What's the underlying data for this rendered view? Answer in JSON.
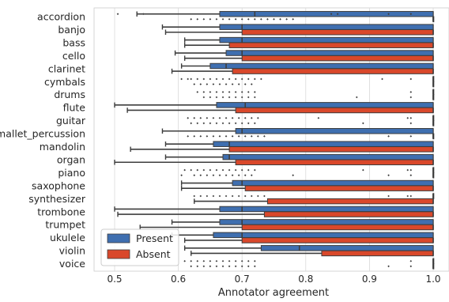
{
  "chart_data": {
    "type": "boxplot",
    "orientation": "horizontal",
    "xlabel": "Annotator agreement",
    "ylabel": "",
    "xlim": [
      0.47,
      1.02
    ],
    "xticks": [
      0.5,
      0.6,
      0.7,
      0.8,
      0.9,
      1.0
    ],
    "xtick_labels": [
      "0.5",
      "0.6",
      "0.7",
      "0.8",
      "0.9",
      "1.0"
    ],
    "grid": "vertical",
    "legend_position": "lower-left",
    "categories": [
      "accordion",
      "banjo",
      "bass",
      "cello",
      "clarinet",
      "cymbals",
      "drums",
      "flute",
      "guitar",
      "mallet_percussion",
      "mandolin",
      "organ",
      "piano",
      "saxophone",
      "synthesizer",
      "trombone",
      "trumpet",
      "ukulele",
      "violin",
      "voice"
    ],
    "series": [
      {
        "name": "Present",
        "color": "#3f6fb0",
        "boxes": [
          {
            "whislo": 0.535,
            "q1": 0.665,
            "med": 0.72,
            "q3": 1.0,
            "whishi": 1.0,
            "fliers": [
              0.505,
              0.545,
              0.84,
              0.85,
              0.93,
              0.965
            ]
          },
          {
            "whislo": 0.575,
            "q1": 0.665,
            "med": 0.7,
            "q3": 1.0,
            "whishi": 1.0,
            "fliers": []
          },
          {
            "whislo": 0.61,
            "q1": 0.665,
            "med": 0.7,
            "q3": 1.0,
            "whishi": 1.0,
            "fliers": []
          },
          {
            "whislo": 0.595,
            "q1": 0.675,
            "med": 0.7,
            "q3": 1.0,
            "whishi": 1.0,
            "fliers": []
          },
          {
            "whislo": 0.605,
            "q1": 0.65,
            "med": 0.675,
            "q3": 1.0,
            "whishi": 1.0,
            "fliers": []
          },
          {
            "whislo": 1.0,
            "q1": 1.0,
            "med": 1.0,
            "q3": 1.0,
            "whishi": 1.0,
            "fliers": [
              0.605,
              0.615,
              0.62,
              0.63,
              0.64,
              0.65,
              0.66,
              0.67,
              0.68,
              0.69,
              0.7,
              0.71,
              0.72,
              0.73,
              0.92,
              0.965
            ]
          },
          {
            "whislo": 1.0,
            "q1": 1.0,
            "med": 1.0,
            "q3": 1.0,
            "whishi": 1.0,
            "fliers": [
              0.63,
              0.64,
              0.65,
              0.66,
              0.67,
              0.68,
              0.69,
              0.7,
              0.71,
              0.72,
              0.965
            ]
          },
          {
            "whislo": 0.5,
            "q1": 0.66,
            "med": 0.705,
            "q3": 1.0,
            "whishi": 1.0,
            "fliers": []
          },
          {
            "whislo": 1.0,
            "q1": 1.0,
            "med": 1.0,
            "q3": 1.0,
            "whishi": 1.0,
            "fliers": [
              0.615,
              0.625,
              0.635,
              0.645,
              0.655,
              0.665,
              0.675,
              0.685,
              0.695,
              0.705,
              0.715,
              0.725,
              0.82,
              0.96,
              0.965
            ]
          },
          {
            "whislo": 0.575,
            "q1": 0.69,
            "med": 0.7,
            "q3": 1.0,
            "whishi": 1.0,
            "fliers": []
          },
          {
            "whislo": 0.58,
            "q1": 0.655,
            "med": 0.68,
            "q3": 1.0,
            "whishi": 1.0,
            "fliers": []
          },
          {
            "whislo": 0.58,
            "q1": 0.67,
            "med": 0.68,
            "q3": 1.0,
            "whishi": 1.0,
            "fliers": []
          },
          {
            "whislo": 1.0,
            "q1": 1.0,
            "med": 1.0,
            "q3": 1.0,
            "whishi": 1.0,
            "fliers": [
              0.61,
              0.62,
              0.63,
              0.64,
              0.65,
              0.66,
              0.67,
              0.68,
              0.69,
              0.7,
              0.71,
              0.72,
              0.89,
              0.96,
              0.965
            ]
          },
          {
            "whislo": 0.605,
            "q1": 0.685,
            "med": 0.7,
            "q3": 1.0,
            "whishi": 1.0,
            "fliers": []
          },
          {
            "whislo": 1.0,
            "q1": 1.0,
            "med": 1.0,
            "q3": 1.0,
            "whishi": 1.0,
            "fliers": [
              0.625,
              0.635,
              0.645,
              0.655,
              0.665,
              0.675,
              0.685,
              0.695,
              0.705,
              0.715,
              0.725,
              0.735,
              0.93,
              0.96,
              0.965
            ]
          },
          {
            "whislo": 0.5,
            "q1": 0.665,
            "med": 0.7,
            "q3": 1.0,
            "whishi": 1.0,
            "fliers": []
          },
          {
            "whislo": 0.59,
            "q1": 0.665,
            "med": 0.7,
            "q3": 1.0,
            "whishi": 1.0,
            "fliers": []
          },
          {
            "whislo": 0.59,
            "q1": 0.655,
            "med": 0.7,
            "q3": 1.0,
            "whishi": 1.0,
            "fliers": []
          },
          {
            "whislo": 0.61,
            "q1": 0.73,
            "med": 0.79,
            "q3": 1.0,
            "whishi": 1.0,
            "fliers": []
          },
          {
            "whislo": 1.0,
            "q1": 1.0,
            "med": 1.0,
            "q3": 1.0,
            "whishi": 1.0,
            "fliers": [
              0.61,
              0.62,
              0.63,
              0.64,
              0.65,
              0.66,
              0.67,
              0.68,
              0.69,
              0.7,
              0.71,
              0.72,
              0.965
            ]
          }
        ]
      },
      {
        "name": "Absent",
        "color": "#d9482b",
        "boxes": [
          {
            "whislo": 1.0,
            "q1": 1.0,
            "med": 1.0,
            "q3": 1.0,
            "whishi": 1.0,
            "fliers": [
              0.62,
              0.63,
              0.64,
              0.65,
              0.66,
              0.67,
              0.68,
              0.69,
              0.7,
              0.71,
              0.72,
              0.73,
              0.74,
              0.75,
              0.76,
              0.77,
              0.78
            ]
          },
          {
            "whislo": 0.58,
            "q1": 0.7,
            "med": 1.0,
            "q3": 1.0,
            "whishi": 1.0,
            "fliers": []
          },
          {
            "whislo": 0.61,
            "q1": 0.68,
            "med": 1.0,
            "q3": 1.0,
            "whishi": 1.0,
            "fliers": []
          },
          {
            "whislo": 0.61,
            "q1": 0.7,
            "med": 1.0,
            "q3": 1.0,
            "whishi": 1.0,
            "fliers": []
          },
          {
            "whislo": 0.59,
            "q1": 0.685,
            "med": 1.0,
            "q3": 1.0,
            "whishi": 1.0,
            "fliers": []
          },
          {
            "whislo": 1.0,
            "q1": 1.0,
            "med": 1.0,
            "q3": 1.0,
            "whishi": 1.0,
            "fliers": [
              0.625,
              0.635,
              0.645,
              0.655,
              0.665,
              0.675,
              0.685,
              0.695,
              0.705,
              0.715
            ]
          },
          {
            "whislo": 1.0,
            "q1": 1.0,
            "med": 1.0,
            "q3": 1.0,
            "whishi": 1.0,
            "fliers": [
              0.64,
              0.65,
              0.66,
              0.67,
              0.68,
              0.69,
              0.7,
              0.71,
              0.72,
              0.88,
              0.965
            ]
          },
          {
            "whislo": 0.52,
            "q1": 0.69,
            "med": 1.0,
            "q3": 1.0,
            "whishi": 1.0,
            "fliers": []
          },
          {
            "whislo": 1.0,
            "q1": 1.0,
            "med": 1.0,
            "q3": 1.0,
            "whishi": 1.0,
            "fliers": [
              0.62,
              0.63,
              0.64,
              0.65,
              0.66,
              0.67,
              0.68,
              0.69,
              0.7,
              0.71,
              0.72,
              0.89,
              0.965
            ]
          },
          {
            "whislo": 1.0,
            "q1": 1.0,
            "med": 1.0,
            "q3": 1.0,
            "whishi": 1.0,
            "fliers": [
              0.615,
              0.625,
              0.635,
              0.645,
              0.655,
              0.665,
              0.675,
              0.685,
              0.695,
              0.705,
              0.715,
              0.725,
              0.735,
              0.93,
              0.965
            ]
          },
          {
            "whislo": 0.525,
            "q1": 0.68,
            "med": 1.0,
            "q3": 1.0,
            "whishi": 1.0,
            "fliers": []
          },
          {
            "whislo": 0.5,
            "q1": 0.69,
            "med": 1.0,
            "q3": 1.0,
            "whishi": 1.0,
            "fliers": []
          },
          {
            "whislo": 1.0,
            "q1": 1.0,
            "med": 1.0,
            "q3": 1.0,
            "whishi": 1.0,
            "fliers": [
              0.605,
              0.625,
              0.635,
              0.645,
              0.655,
              0.665,
              0.675,
              0.685,
              0.695,
              0.705,
              0.715,
              0.78,
              0.93,
              0.965
            ]
          },
          {
            "whislo": 0.605,
            "q1": 0.705,
            "med": 1.0,
            "q3": 1.0,
            "whishi": 1.0,
            "fliers": []
          },
          {
            "whislo": 0.625,
            "q1": 0.74,
            "med": 1.0,
            "q3": 1.0,
            "whishi": 1.0,
            "fliers": []
          },
          {
            "whislo": 0.505,
            "q1": 0.735,
            "med": 1.0,
            "q3": 1.0,
            "whishi": 1.0,
            "fliers": []
          },
          {
            "whislo": 0.54,
            "q1": 0.7,
            "med": 1.0,
            "q3": 1.0,
            "whishi": 1.0,
            "fliers": []
          },
          {
            "whislo": 0.61,
            "q1": 0.7,
            "med": 1.0,
            "q3": 1.0,
            "whishi": 1.0,
            "fliers": []
          },
          {
            "whislo": 0.62,
            "q1": 0.825,
            "med": 1.0,
            "q3": 1.0,
            "whishi": 1.0,
            "fliers": []
          },
          {
            "whislo": 1.0,
            "q1": 1.0,
            "med": 1.0,
            "q3": 1.0,
            "whishi": 1.0,
            "fliers": [
              0.62,
              0.63,
              0.64,
              0.65,
              0.66,
              0.67,
              0.68,
              0.69,
              0.7,
              0.71,
              0.72,
              0.93,
              0.965
            ]
          }
        ]
      }
    ]
  }
}
